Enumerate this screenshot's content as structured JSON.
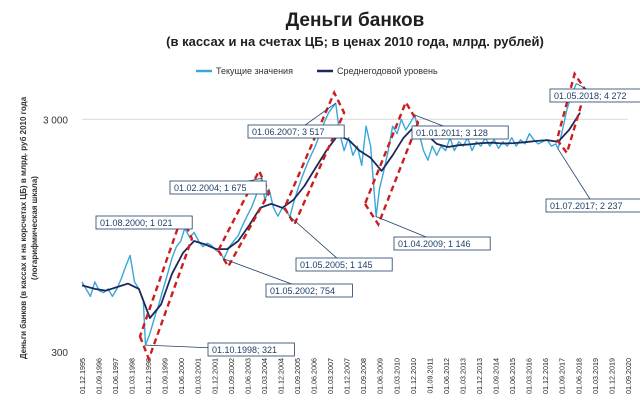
{
  "chart_data": {
    "type": "line",
    "title": "Деньги банков",
    "subtitle": "(в кассах и на счетах ЦБ; в ценах 2010 года, млрд. рублей)",
    "ylabel_lines": [
      "Деньги банков (в кассах и на корсчетах ЦБ) в млрд. руб 2010 года",
      "(логарифмическая шкала)"
    ],
    "y_scale": "log",
    "ylim": [
      300,
      5500
    ],
    "yticks": [
      {
        "value": 300,
        "label": "300"
      },
      {
        "value": 3000,
        "label": "3 000"
      }
    ],
    "grid": "horizontal at 3 000",
    "legend_position": "top-center",
    "x_tick_labels": [
      "01.12.1995",
      "01.09.1996",
      "01.06.1997",
      "01.03.1998",
      "01.12.1998",
      "01.09.1999",
      "01.06.2000",
      "01.03.2001",
      "01.12.2001",
      "01.09.2002",
      "01.06.2003",
      "01.03.2004",
      "01.12.2004",
      "01.09.2005",
      "01.06.2006",
      "01.03.2007",
      "01.12.2007",
      "01.09.2008",
      "01.06.2009",
      "01.03.2010",
      "01.12.2010",
      "01.09.2011",
      "01.06.2012",
      "01.03.2013",
      "01.12.2013",
      "01.09.2014",
      "01.06.2015",
      "01.03.2016",
      "01.12.2016",
      "01.09.2017",
      "01.06.2018",
      "01.03.2019",
      "01.12.2019",
      "01.09.2020"
    ],
    "colors": {
      "current": "#3aa7d8",
      "average": "#1b2a5a",
      "annotation": "#1f3f66",
      "box": "#cc1e1e",
      "grid": "#d9d9d9"
    },
    "series": [
      {
        "name": "Текущие значения",
        "points": [
          [
            1995.92,
            600
          ],
          [
            1996.1,
            560
          ],
          [
            1996.3,
            520
          ],
          [
            1996.5,
            600
          ],
          [
            1996.7,
            550
          ],
          [
            1996.9,
            540
          ],
          [
            1997.1,
            560
          ],
          [
            1997.3,
            520
          ],
          [
            1997.5,
            560
          ],
          [
            1997.7,
            620
          ],
          [
            1997.9,
            700
          ],
          [
            1998.1,
            780
          ],
          [
            1998.3,
            600
          ],
          [
            1998.5,
            560
          ],
          [
            1998.7,
            500
          ],
          [
            1998.8,
            321
          ],
          [
            1999.0,
            360
          ],
          [
            1999.2,
            420
          ],
          [
            1999.4,
            480
          ],
          [
            1999.6,
            560
          ],
          [
            1999.8,
            650
          ],
          [
            2000.0,
            760
          ],
          [
            2000.2,
            850
          ],
          [
            2000.4,
            900
          ],
          [
            2000.58,
            1021
          ],
          [
            2000.8,
            930
          ],
          [
            2001.0,
            980
          ],
          [
            2001.2,
            900
          ],
          [
            2001.4,
            850
          ],
          [
            2001.6,
            880
          ],
          [
            2001.8,
            860
          ],
          [
            2002.0,
            820
          ],
          [
            2002.2,
            800
          ],
          [
            2002.35,
            754
          ],
          [
            2002.6,
            850
          ],
          [
            2002.8,
            900
          ],
          [
            2003.0,
            950
          ],
          [
            2003.2,
            1050
          ],
          [
            2003.4,
            1150
          ],
          [
            2003.6,
            1250
          ],
          [
            2003.8,
            1400
          ],
          [
            2004.08,
            1675
          ],
          [
            2004.2,
            1350
          ],
          [
            2004.4,
            1500
          ],
          [
            2004.6,
            1250
          ],
          [
            2004.8,
            1150
          ],
          [
            2005.0,
            1250
          ],
          [
            2005.2,
            1200
          ],
          [
            2005.35,
            1145
          ],
          [
            2005.5,
            1300
          ],
          [
            2005.7,
            1500
          ],
          [
            2005.9,
            1700
          ],
          [
            2006.1,
            1900
          ],
          [
            2006.3,
            2100
          ],
          [
            2006.5,
            2300
          ],
          [
            2006.7,
            2600
          ],
          [
            2006.9,
            2900
          ],
          [
            2007.1,
            3200
          ],
          [
            2007.42,
            3517
          ],
          [
            2007.6,
            2600
          ],
          [
            2007.8,
            2200
          ],
          [
            2008.0,
            2500
          ],
          [
            2008.2,
            2100
          ],
          [
            2008.4,
            2300
          ],
          [
            2008.6,
            1900
          ],
          [
            2008.8,
            2800
          ],
          [
            2009.0,
            2300
          ],
          [
            2009.25,
            1146
          ],
          [
            2009.4,
            1500
          ],
          [
            2009.6,
            1800
          ],
          [
            2009.8,
            2200
          ],
          [
            2010.0,
            2800
          ],
          [
            2010.2,
            2600
          ],
          [
            2010.4,
            3000
          ],
          [
            2010.6,
            2700
          ],
          [
            2010.8,
            2900
          ],
          [
            2011.0,
            3128
          ],
          [
            2011.2,
            2600
          ],
          [
            2011.4,
            2200
          ],
          [
            2011.6,
            2000
          ],
          [
            2011.8,
            2300
          ],
          [
            2012.0,
            2100
          ],
          [
            2012.2,
            2300
          ],
          [
            2012.4,
            2200
          ],
          [
            2012.6,
            2500
          ],
          [
            2012.8,
            2200
          ],
          [
            2013.0,
            2400
          ],
          [
            2013.2,
            2300
          ],
          [
            2013.4,
            2500
          ],
          [
            2013.6,
            2200
          ],
          [
            2013.8,
            2400
          ],
          [
            2014.0,
            2300
          ],
          [
            2014.2,
            2500
          ],
          [
            2014.4,
            2300
          ],
          [
            2014.6,
            2450
          ],
          [
            2014.8,
            2250
          ],
          [
            2015.0,
            2400
          ],
          [
            2015.2,
            2300
          ],
          [
            2015.4,
            2500
          ],
          [
            2015.6,
            2300
          ],
          [
            2015.8,
            2450
          ],
          [
            2016.0,
            2350
          ],
          [
            2016.2,
            2600
          ],
          [
            2016.4,
            2450
          ],
          [
            2016.6,
            2350
          ],
          [
            2016.8,
            2400
          ],
          [
            2017.0,
            2450
          ],
          [
            2017.2,
            2300
          ],
          [
            2017.4,
            2350
          ],
          [
            2017.5,
            2237
          ],
          [
            2017.7,
            2700
          ],
          [
            2017.9,
            3300
          ],
          [
            2018.1,
            3800
          ],
          [
            2018.33,
            4272
          ]
        ]
      },
      {
        "name": "Среднегодовой уровень",
        "points": [
          [
            1995.92,
            580
          ],
          [
            1996.5,
            560
          ],
          [
            1997.0,
            550
          ],
          [
            1997.5,
            570
          ],
          [
            1998.0,
            590
          ],
          [
            1998.5,
            560
          ],
          [
            1999.0,
            420
          ],
          [
            1999.5,
            480
          ],
          [
            2000.0,
            650
          ],
          [
            2000.5,
            800
          ],
          [
            2001.0,
            900
          ],
          [
            2001.5,
            870
          ],
          [
            2002.0,
            830
          ],
          [
            2002.5,
            830
          ],
          [
            2003.0,
            900
          ],
          [
            2003.5,
            1050
          ],
          [
            2004.0,
            1250
          ],
          [
            2004.5,
            1300
          ],
          [
            2005.0,
            1250
          ],
          [
            2005.5,
            1350
          ],
          [
            2006.0,
            1550
          ],
          [
            2006.5,
            1850
          ],
          [
            2007.0,
            2200
          ],
          [
            2007.5,
            2550
          ],
          [
            2008.0,
            2450
          ],
          [
            2008.5,
            2200
          ],
          [
            2009.0,
            2050
          ],
          [
            2009.5,
            1800
          ],
          [
            2010.0,
            2100
          ],
          [
            2010.5,
            2500
          ],
          [
            2011.0,
            2800
          ],
          [
            2011.5,
            2600
          ],
          [
            2012.0,
            2350
          ],
          [
            2012.5,
            2280
          ],
          [
            2013.0,
            2320
          ],
          [
            2013.5,
            2340
          ],
          [
            2014.0,
            2370
          ],
          [
            2014.5,
            2380
          ],
          [
            2015.0,
            2360
          ],
          [
            2015.5,
            2370
          ],
          [
            2016.0,
            2390
          ],
          [
            2016.5,
            2420
          ],
          [
            2017.0,
            2440
          ],
          [
            2017.5,
            2400
          ],
          [
            2018.0,
            2700
          ],
          [
            2018.5,
            3200
          ]
        ]
      }
    ],
    "annotations": [
      {
        "date": "01.10.1998",
        "value": "321"
      },
      {
        "date": "01.08.2000",
        "value": "1 021"
      },
      {
        "date": "01.05.2002",
        "value": "754"
      },
      {
        "date": "01.02.2004",
        "value": "1 675"
      },
      {
        "date": "01.05.2005",
        "value": "1 145"
      },
      {
        "date": "01.06.2007",
        "value": "3 517"
      },
      {
        "date": "01.04.2009",
        "value": "1 146"
      },
      {
        "date": "01.01.2011",
        "value": "3 128"
      },
      {
        "date": "01.07.2017",
        "value": "2 237"
      },
      {
        "date": "01.05.2018",
        "value": "4 272"
      }
    ]
  }
}
